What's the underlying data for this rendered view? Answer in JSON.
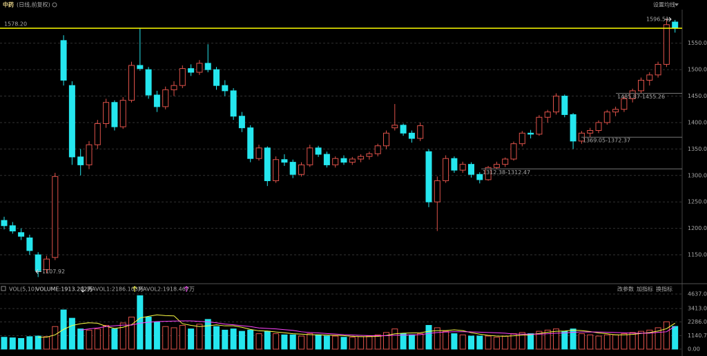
{
  "header": {
    "title": "中药",
    "subtitle": "(日线,前复权)",
    "button": "设置均线"
  },
  "chart_data": [
    {
      "type": "candlestick",
      "up_color": "#e0524a",
      "down_color": "#25e6ee",
      "ylim": [
        1098,
        1616
      ],
      "yticks": [
        {
          "value": 1150,
          "label": "1150.00"
        },
        {
          "value": 1200,
          "label": "1200.00"
        },
        {
          "value": 1250,
          "label": "1250.00"
        },
        {
          "value": 1300,
          "label": "1300.00"
        },
        {
          "value": 1350,
          "label": "1350.00"
        },
        {
          "value": 1400,
          "label": "1400.00"
        },
        {
          "value": 1450,
          "label": "1450.00"
        },
        {
          "value": 1500,
          "label": "1500.00"
        },
        {
          "value": 1550,
          "label": "1550.00"
        }
      ],
      "grid": true,
      "last_price": {
        "value": 1578.2,
        "label": "1578.20",
        "color": "#ffff00"
      },
      "high_label": 1596.51,
      "low_label": 1107.92,
      "ranges": [
        {
          "label": "1485.87-1455.26",
          "level": 1455.26
        },
        {
          "label": "1369.05-1372.37",
          "level": 1372.37
        },
        {
          "label": "1312.38-1312.47",
          "level": 1312.38
        }
      ],
      "candles": [
        [
          1215,
          1222,
          1198,
          1205
        ],
        [
          1205,
          1212,
          1190,
          1195
        ],
        [
          1192,
          1200,
          1178,
          1185
        ],
        [
          1182,
          1188,
          1150,
          1158
        ],
        [
          1150,
          1155,
          1107.92,
          1120
        ],
        [
          1122,
          1148,
          1115,
          1142
        ],
        [
          1145,
          1305,
          1140,
          1298
        ],
        [
          1555,
          1565,
          1470,
          1480
        ],
        [
          1470,
          1478,
          1320,
          1335
        ],
        [
          1335,
          1350,
          1300,
          1320
        ],
        [
          1320,
          1365,
          1312,
          1358
        ],
        [
          1358,
          1405,
          1350,
          1398
        ],
        [
          1398,
          1445,
          1390,
          1438
        ],
        [
          1438,
          1442,
          1385,
          1392
        ],
        [
          1392,
          1448,
          1388,
          1442
        ],
        [
          1442,
          1515,
          1438,
          1508
        ],
        [
          1508,
          1578.2,
          1498,
          1502
        ],
        [
          1500,
          1505,
          1445,
          1452
        ],
        [
          1452,
          1460,
          1420,
          1430
        ],
        [
          1430,
          1468,
          1425,
          1462
        ],
        [
          1462,
          1478,
          1450,
          1470
        ],
        [
          1470,
          1508,
          1465,
          1502
        ],
        [
          1502,
          1510,
          1488,
          1495
        ],
        [
          1495,
          1518,
          1490,
          1512
        ],
        [
          1512,
          1548,
          1495,
          1500
        ],
        [
          1500,
          1505,
          1462,
          1470
        ],
        [
          1470,
          1480,
          1450,
          1460
        ],
        [
          1460,
          1465,
          1405,
          1412
        ],
        [
          1412,
          1420,
          1382,
          1390
        ],
        [
          1390,
          1395,
          1325,
          1332
        ],
        [
          1332,
          1358,
          1328,
          1352
        ],
        [
          1352,
          1355,
          1280,
          1290
        ],
        [
          1290,
          1336,
          1286,
          1330
        ],
        [
          1330,
          1340,
          1318,
          1325
        ],
        [
          1325,
          1330,
          1295,
          1302
        ],
        [
          1302,
          1325,
          1298,
          1320
        ],
        [
          1320,
          1358,
          1316,
          1352
        ],
        [
          1352,
          1356,
          1335,
          1340
        ],
        [
          1340,
          1345,
          1315,
          1320
        ],
        [
          1320,
          1336,
          1315,
          1332
        ],
        [
          1332,
          1338,
          1320,
          1325
        ],
        [
          1325,
          1335,
          1320,
          1331
        ],
        [
          1331,
          1340,
          1325,
          1336
        ],
        [
          1336,
          1345,
          1330,
          1341
        ],
        [
          1341,
          1360,
          1336,
          1356
        ],
        [
          1356,
          1385,
          1350,
          1380
        ],
        [
          1390,
          1435,
          1385,
          1395
        ],
        [
          1395,
          1398,
          1375,
          1380
        ],
        [
          1380,
          1385,
          1362,
          1370
        ],
        [
          1370,
          1400,
          1365,
          1394
        ],
        [
          1345,
          1350,
          1240,
          1250
        ],
        [
          1250,
          1298,
          1195,
          1290
        ],
        [
          1290,
          1338,
          1286,
          1332
        ],
        [
          1332,
          1336,
          1305,
          1310
        ],
        [
          1310,
          1326,
          1305,
          1321
        ],
        [
          1321,
          1325,
          1296,
          1302
        ],
        [
          1302,
          1306,
          1285,
          1292
        ],
        [
          1292,
          1318,
          1290,
          1315
        ],
        [
          1315,
          1326,
          1312,
          1321
        ],
        [
          1321,
          1334,
          1316,
          1331
        ],
        [
          1331,
          1364,
          1328,
          1360
        ],
        [
          1360,
          1384,
          1355,
          1380
        ],
        [
          1380,
          1386,
          1370,
          1378
        ],
        [
          1378,
          1414,
          1375,
          1410
        ],
        [
          1410,
          1424,
          1400,
          1420
        ],
        [
          1420,
          1455.26,
          1415,
          1450
        ],
        [
          1450,
          1453,
          1410,
          1415
        ],
        [
          1415,
          1418,
          1350,
          1365
        ],
        [
          1365,
          1384,
          1360,
          1380
        ],
        [
          1380,
          1390,
          1372,
          1385
        ],
        [
          1385,
          1404,
          1380,
          1400
        ],
        [
          1400,
          1424,
          1396,
          1420
        ],
        [
          1420,
          1430,
          1412,
          1425
        ],
        [
          1425,
          1450,
          1420,
          1445
        ],
        [
          1445,
          1464,
          1438,
          1460
        ],
        [
          1460,
          1485,
          1455,
          1480
        ],
        [
          1480,
          1495,
          1470,
          1490
        ],
        [
          1490,
          1515,
          1485,
          1510
        ],
        [
          1510,
          1596.51,
          1505,
          1585
        ],
        [
          1590,
          1594,
          1570,
          1578.2
        ]
      ]
    },
    {
      "type": "bar",
      "title": "VOL(5,10)",
      "buttons": [
        "改参数",
        "加指标",
        "换指标"
      ],
      "ylim": [
        0,
        4637
      ],
      "yticks": [
        {
          "value": 0,
          "label": "0.00"
        },
        1140.75,
        {
          "value": 2286,
          "label": "2286.00"
        },
        {
          "value": 3413,
          "label": "3413.00"
        },
        {
          "value": 4637,
          "label": "4637.00"
        }
      ],
      "volume_label": "VOLUME:1913.202万",
      "values": [
        1000,
        950,
        900,
        1050,
        1100,
        1050,
        1900,
        3300,
        2600,
        1700,
        1600,
        1700,
        2000,
        1700,
        2200,
        2700,
        4500,
        2700,
        2300,
        1900,
        1800,
        2000,
        1700,
        2100,
        2500,
        1900,
        1600,
        1700,
        1500,
        1600,
        1300,
        1500,
        1300,
        1200,
        1200,
        1100,
        1300,
        1200,
        1100,
        1100,
        1000,
        1000,
        1050,
        1100,
        1200,
        1400,
        1700,
        1300,
        1200,
        1300,
        2000,
        1800,
        1500,
        1300,
        1200,
        1100,
        1100,
        1100,
        1000,
        1100,
        1300,
        1400,
        1300,
        1500,
        1600,
        1700,
        1500,
        1700,
        1300,
        1200,
        1100,
        1200,
        1200,
        1300,
        1400,
        1500,
        1600,
        1800,
        2300,
        1913.202
      ],
      "series": [
        {
          "name": "MAVOL1:2186.103万",
          "color": "#ffff44",
          "values": [
            null,
            null,
            null,
            null,
            1000,
            1010,
            1200,
            1660,
            1990,
            2140,
            2220,
            2180,
            1920,
            1740,
            1840,
            2060,
            2620,
            2760,
            2880,
            2820,
            2800,
            2140,
            2000,
            1900,
            1960,
            2040,
            1960,
            1960,
            1840,
            1660,
            1540,
            1520,
            1440,
            1380,
            1300,
            1260,
            1220,
            1200,
            1180,
            1160,
            1140,
            1080,
            1050,
            1050,
            1070,
            1150,
            1290,
            1340,
            1360,
            1380,
            1500,
            1560,
            1560,
            1620,
            1560,
            1380,
            1260,
            1160,
            1100,
            1080,
            1120,
            1180,
            1220,
            1320,
            1420,
            1500,
            1520,
            1600,
            1560,
            1480,
            1360,
            1300,
            1200,
            1200,
            1240,
            1320,
            1400,
            1520,
            1720,
            2186.103
          ]
        },
        {
          "name": "MAVOL2:1918.467万",
          "color": "#ff44ff",
          "values": [
            null,
            null,
            null,
            null,
            null,
            null,
            null,
            null,
            null,
            1600,
            1700,
            1780,
            1900,
            1960,
            2020,
            2020,
            2190,
            2260,
            2320,
            2340,
            2360,
            2380,
            2380,
            2330,
            2300,
            2220,
            2110,
            2050,
            1970,
            1900,
            1780,
            1740,
            1700,
            1640,
            1580,
            1460,
            1400,
            1360,
            1310,
            1270,
            1220,
            1190,
            1160,
            1140,
            1130,
            1130,
            1170,
            1190,
            1200,
            1220,
            1320,
            1400,
            1440,
            1460,
            1460,
            1450,
            1430,
            1400,
            1380,
            1340,
            1270,
            1260,
            1260,
            1260,
            1300,
            1340,
            1360,
            1420,
            1440,
            1440,
            1440,
            1420,
            1400,
            1380,
            1340,
            1340,
            1340,
            1410,
            1460,
            1918.467
          ]
        }
      ]
    }
  ]
}
